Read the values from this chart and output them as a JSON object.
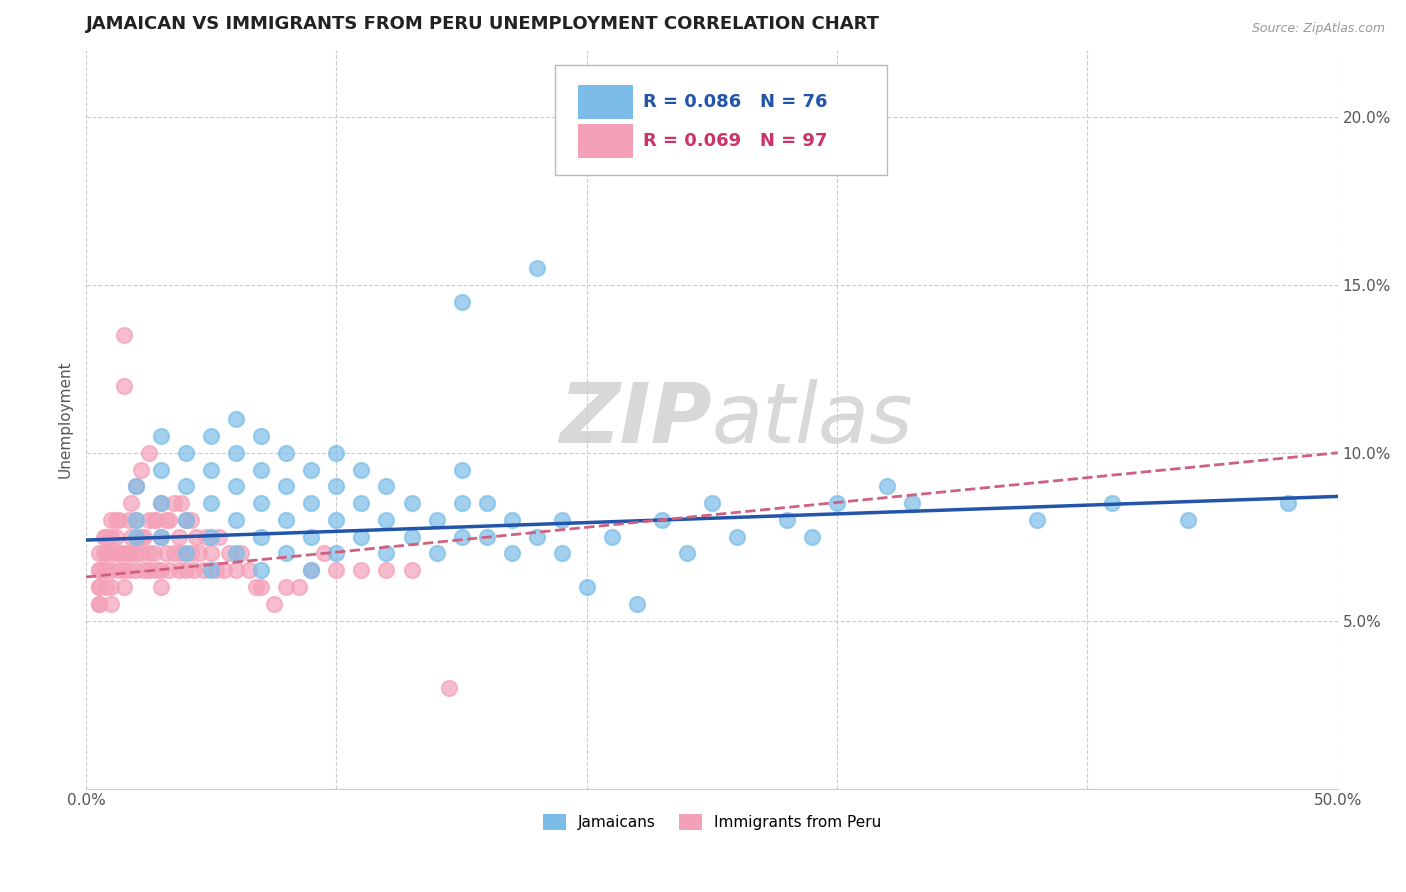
{
  "title": "JAMAICAN VS IMMIGRANTS FROM PERU UNEMPLOYMENT CORRELATION CHART",
  "source": "Source: ZipAtlas.com",
  "ylabel_label": "Unemployment",
  "xlim": [
    0.0,
    0.5
  ],
  "ylim": [
    0.0,
    0.22
  ],
  "x_ticks": [
    0.0,
    0.1,
    0.2,
    0.3,
    0.4,
    0.5
  ],
  "x_tick_labels": [
    "0.0%",
    "",
    "",
    "",
    "",
    "50.0%"
  ],
  "y_ticks": [
    0.0,
    0.05,
    0.1,
    0.15,
    0.2
  ],
  "y_tick_labels": [
    "",
    "5.0%",
    "10.0%",
    "15.0%",
    "20.0%"
  ],
  "legend_r1": "R = 0.086",
  "legend_n1": "N = 76",
  "legend_r2": "R = 0.069",
  "legend_n2": "N = 97",
  "jamaicans_color": "#7bbde8",
  "peru_color": "#f4a0b8",
  "jamaicans_line_color": "#2255aa",
  "peru_line_color": "#d06080",
  "watermark_zip": "ZIP",
  "watermark_atlas": "atlas",
  "background_color": "#ffffff",
  "scatter_jamaicans_x": [
    0.02,
    0.02,
    0.02,
    0.03,
    0.03,
    0.03,
    0.03,
    0.04,
    0.04,
    0.04,
    0.04,
    0.05,
    0.05,
    0.05,
    0.05,
    0.05,
    0.06,
    0.06,
    0.06,
    0.06,
    0.06,
    0.07,
    0.07,
    0.07,
    0.07,
    0.07,
    0.08,
    0.08,
    0.08,
    0.08,
    0.09,
    0.09,
    0.09,
    0.09,
    0.1,
    0.1,
    0.1,
    0.1,
    0.11,
    0.11,
    0.11,
    0.12,
    0.12,
    0.12,
    0.13,
    0.13,
    0.14,
    0.14,
    0.15,
    0.15,
    0.15,
    0.15,
    0.16,
    0.16,
    0.17,
    0.17,
    0.18,
    0.18,
    0.19,
    0.19,
    0.2,
    0.21,
    0.22,
    0.23,
    0.24,
    0.25,
    0.26,
    0.28,
    0.29,
    0.3,
    0.32,
    0.33,
    0.38,
    0.41,
    0.44,
    0.48
  ],
  "scatter_jamaicans_y": [
    0.075,
    0.08,
    0.09,
    0.085,
    0.095,
    0.105,
    0.075,
    0.07,
    0.08,
    0.09,
    0.1,
    0.065,
    0.075,
    0.085,
    0.095,
    0.105,
    0.07,
    0.08,
    0.09,
    0.1,
    0.11,
    0.065,
    0.075,
    0.085,
    0.095,
    0.105,
    0.07,
    0.08,
    0.09,
    0.1,
    0.065,
    0.075,
    0.085,
    0.095,
    0.07,
    0.08,
    0.09,
    0.1,
    0.075,
    0.085,
    0.095,
    0.07,
    0.08,
    0.09,
    0.075,
    0.085,
    0.07,
    0.08,
    0.145,
    0.095,
    0.075,
    0.085,
    0.075,
    0.085,
    0.07,
    0.08,
    0.155,
    0.075,
    0.07,
    0.08,
    0.06,
    0.075,
    0.055,
    0.08,
    0.07,
    0.085,
    0.075,
    0.08,
    0.075,
    0.085,
    0.09,
    0.085,
    0.08,
    0.085,
    0.08,
    0.085
  ],
  "scatter_peru_x": [
    0.005,
    0.005,
    0.005,
    0.005,
    0.005,
    0.005,
    0.005,
    0.007,
    0.007,
    0.007,
    0.008,
    0.008,
    0.008,
    0.008,
    0.01,
    0.01,
    0.01,
    0.01,
    0.01,
    0.01,
    0.012,
    0.012,
    0.012,
    0.013,
    0.013,
    0.013,
    0.015,
    0.015,
    0.015,
    0.015,
    0.015,
    0.017,
    0.017,
    0.017,
    0.018,
    0.018,
    0.018,
    0.02,
    0.02,
    0.02,
    0.02,
    0.022,
    0.022,
    0.022,
    0.023,
    0.023,
    0.025,
    0.025,
    0.025,
    0.025,
    0.027,
    0.027,
    0.028,
    0.028,
    0.03,
    0.03,
    0.03,
    0.03,
    0.032,
    0.032,
    0.033,
    0.033,
    0.035,
    0.035,
    0.037,
    0.037,
    0.038,
    0.038,
    0.04,
    0.04,
    0.042,
    0.042,
    0.043,
    0.044,
    0.045,
    0.047,
    0.048,
    0.05,
    0.052,
    0.053,
    0.055,
    0.057,
    0.06,
    0.062,
    0.065,
    0.068,
    0.07,
    0.075,
    0.08,
    0.085,
    0.09,
    0.095,
    0.1,
    0.11,
    0.12,
    0.13,
    0.145
  ],
  "scatter_peru_y": [
    0.055,
    0.06,
    0.065,
    0.07,
    0.055,
    0.06,
    0.065,
    0.065,
    0.07,
    0.075,
    0.06,
    0.065,
    0.07,
    0.075,
    0.055,
    0.06,
    0.065,
    0.07,
    0.075,
    0.08,
    0.07,
    0.075,
    0.08,
    0.065,
    0.07,
    0.08,
    0.06,
    0.065,
    0.07,
    0.12,
    0.135,
    0.065,
    0.07,
    0.08,
    0.07,
    0.075,
    0.085,
    0.065,
    0.07,
    0.08,
    0.09,
    0.07,
    0.075,
    0.095,
    0.065,
    0.075,
    0.065,
    0.07,
    0.08,
    0.1,
    0.07,
    0.08,
    0.065,
    0.08,
    0.06,
    0.065,
    0.075,
    0.085,
    0.07,
    0.08,
    0.065,
    0.08,
    0.07,
    0.085,
    0.065,
    0.075,
    0.07,
    0.085,
    0.065,
    0.08,
    0.07,
    0.08,
    0.065,
    0.075,
    0.07,
    0.065,
    0.075,
    0.07,
    0.065,
    0.075,
    0.065,
    0.07,
    0.065,
    0.07,
    0.065,
    0.06,
    0.06,
    0.055,
    0.06,
    0.06,
    0.065,
    0.07,
    0.065,
    0.065,
    0.065,
    0.065,
    0.03
  ],
  "title_fontsize": 13,
  "axis_label_fontsize": 11,
  "tick_fontsize": 11,
  "legend_fontsize": 13
}
